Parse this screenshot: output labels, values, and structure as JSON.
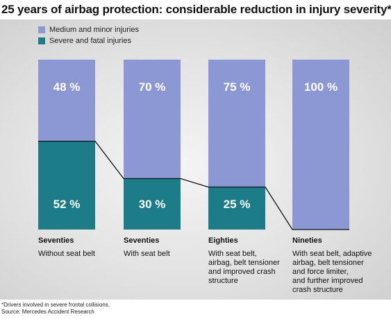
{
  "title": "25 years of airbag protection: considerable reduction in injury severity*",
  "legend": [
    {
      "label": "Medium and minor injuries",
      "color": "#8c98d4"
    },
    {
      "label": "Severe and fatal injuries",
      "color": "#1c7c87"
    }
  ],
  "categories": [
    {
      "name": "Seventies",
      "desc": "Without seat belt"
    },
    {
      "name": "Seventies",
      "desc": "With seat belt"
    },
    {
      "name": "Eighties",
      "desc": "With seat belt,\nairbag, belt tensioner\nand improved crash\nstructure"
    },
    {
      "name": "Nineties",
      "desc": "With seat belt, adaptive\nairbag, belt tensioner\nand force limiter,\nand further improved\ncrash structure"
    }
  ],
  "footnote": "*Drivers involved in severe frontal collisions.\n Source: Mercedes Accident Research",
  "chart_data": {
    "type": "bar",
    "stacked": true,
    "title": "25 years of airbag protection: considerable reduction in injury severity*",
    "categories": [
      "Seventies – Without seat belt",
      "Seventies – With seat belt",
      "Eighties – With seat belt, airbag, belt tensioner and improved crash structure",
      "Nineties – With seat belt, adaptive airbag, belt tensioner and force limiter, and further improved crash structure"
    ],
    "series": [
      {
        "name": "Medium and minor injuries",
        "values": [
          48,
          70,
          75,
          100
        ],
        "labels": [
          "48 %",
          "70 %",
          "75 %",
          "100 %"
        ],
        "color": "#8c98d4"
      },
      {
        "name": "Severe and fatal injuries",
        "values": [
          52,
          30,
          25,
          0
        ],
        "labels": [
          "52 %",
          "30 %",
          "25 %",
          ""
        ],
        "color": "#1c7c87"
      }
    ],
    "ylim": [
      0,
      100
    ],
    "grid": false,
    "legend_position": "top-left"
  }
}
